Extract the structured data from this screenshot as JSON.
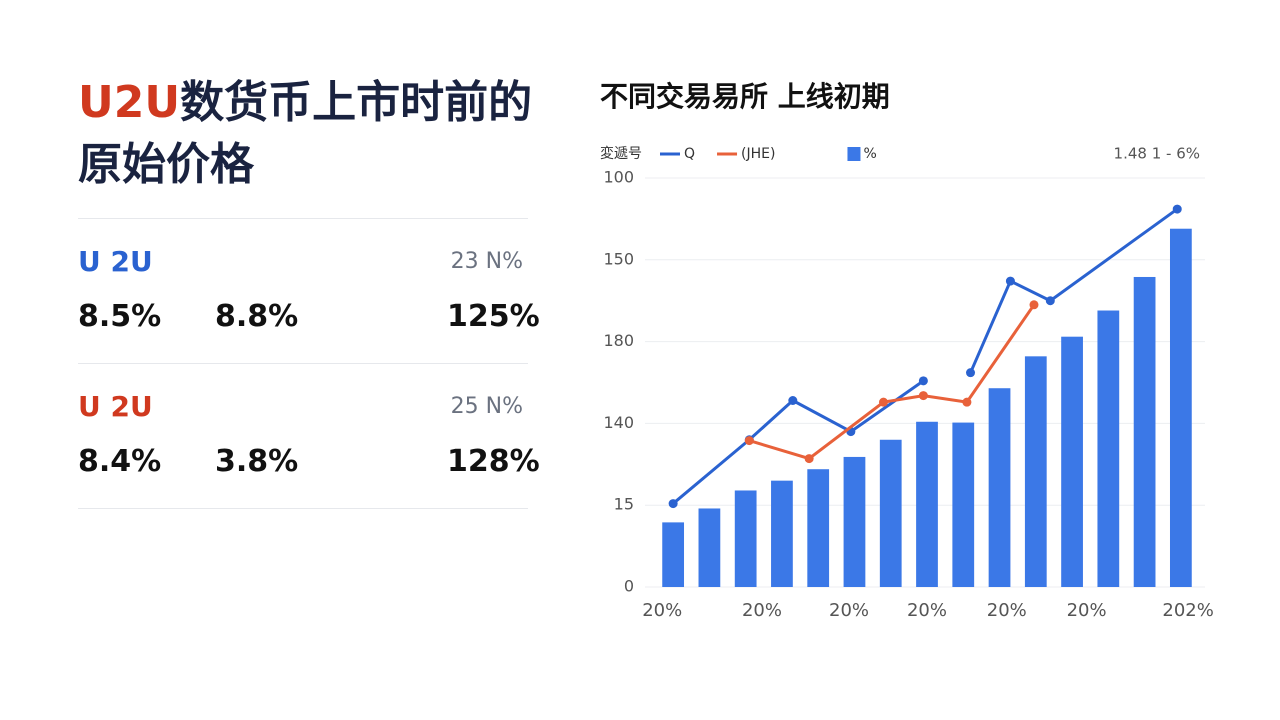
{
  "panel": {
    "title": {
      "highlight": "U2U",
      "lines": [
        "数货币上市时前的",
        "原始价格"
      ]
    },
    "items": [
      {
        "name": "U 2U",
        "color": "#2a62d0",
        "note": "23 N%",
        "values": [
          "8.5%",
          "8.8%",
          "125%"
        ]
      },
      {
        "name": "U 2U",
        "color": "#d0391f",
        "note": "25 N%",
        "values": [
          "8.4%",
          "3.8%",
          "128%"
        ]
      }
    ]
  },
  "chart_data": {
    "type": "bar-line",
    "title": "不同交易易所 上线初期",
    "legend_title": "変遞号",
    "corner_note": "1.48 1 - 6%",
    "xlim": [
      -0.5,
      14.5
    ],
    "xticks": [
      {
        "value": -0.3,
        "label": "20%"
      },
      {
        "value": 2.45,
        "label": "20%"
      },
      {
        "value": 4.85,
        "label": "20%"
      },
      {
        "value": 7.0,
        "label": "20%"
      },
      {
        "value": 9.2,
        "label": "20%"
      },
      {
        "value": 11.4,
        "label": "20%"
      },
      {
        "value": 14.2,
        "label": "202%"
      }
    ],
    "ylim": [
      0,
      5
    ],
    "yticks": [
      0,
      {
        "value": 1,
        "label": "15"
      },
      {
        "value": 2,
        "label": "140"
      },
      {
        "value": 3,
        "label": "180"
      },
      {
        "value": 4,
        "label": "150"
      },
      {
        "value": 5,
        "label": "100"
      }
    ],
    "grid": true,
    "bars": {
      "name": "%",
      "color": "#3b78e7",
      "x": [
        0,
        1,
        2,
        3,
        4,
        5,
        6,
        7,
        8,
        9,
        10,
        11,
        12,
        13,
        14
      ],
      "values": [
        0.79,
        0.96,
        1.18,
        1.3,
        1.44,
        1.59,
        1.8,
        2.02,
        2.01,
        2.43,
        2.82,
        3.06,
        3.38,
        3.79,
        4.38
      ]
    },
    "series": [
      {
        "name": "Q",
        "color": "#2a62d0",
        "x": [
          0,
          2.1,
          3.3,
          4.9,
          6.9,
          7.5,
          8.2,
          9.3,
          10.4,
          13.9
        ],
        "values": [
          1.02,
          1.8,
          2.28,
          1.9,
          2.52,
          null,
          2.62,
          3.74,
          3.5,
          4.62
        ]
      },
      {
        "name": "(JHE)",
        "color": "#e8613a",
        "x": [
          2.1,
          3.75,
          5.8,
          6.9,
          8.1,
          9.95
        ],
        "values": [
          1.79,
          1.57,
          2.26,
          2.34,
          2.26,
          3.45
        ]
      }
    ]
  }
}
